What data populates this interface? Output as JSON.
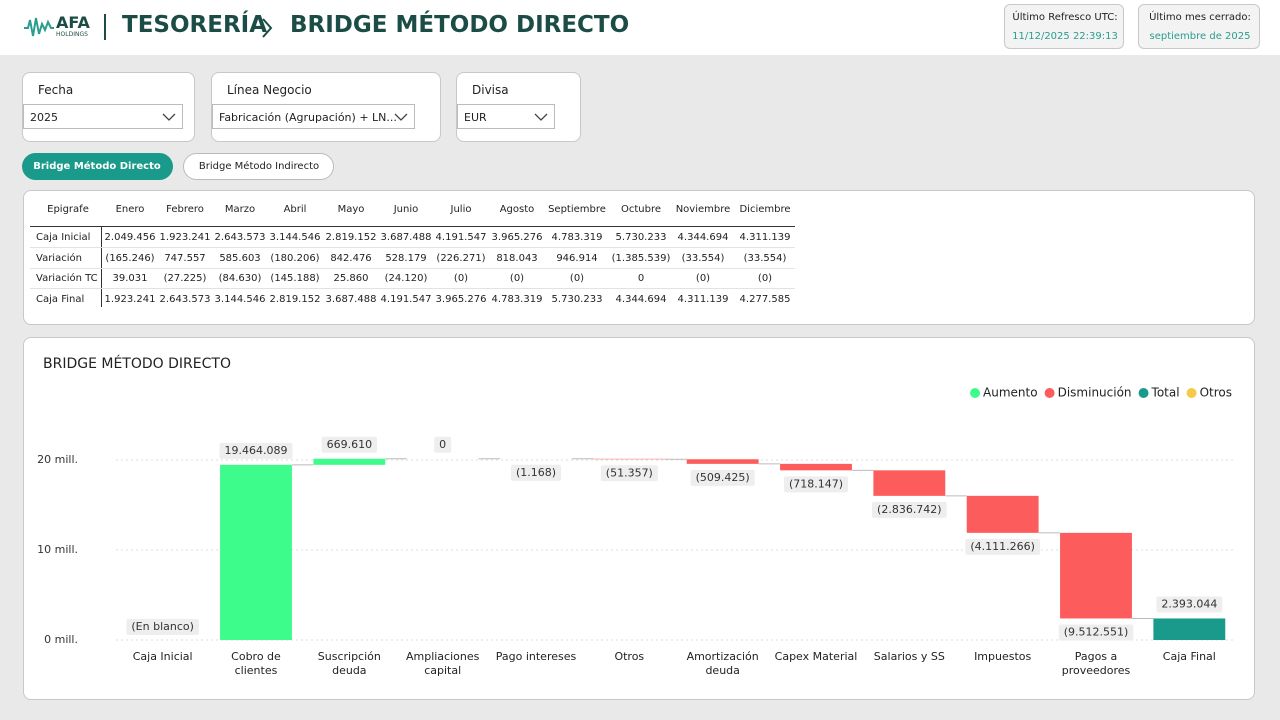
{
  "header": {
    "logo": "AFA",
    "logo_sub": "HOLDINGS",
    "section": "TESORERÍA",
    "page": "BRIDGE MÉTODO DIRECTO",
    "refresh_label": "Último Refresco UTC:",
    "refresh_value": "11/12/2025 22:39:13",
    "closed_label": "Último mes cerrado:",
    "closed_value": "septiembre de 2025"
  },
  "filters": [
    {
      "label": "Fecha",
      "value": "2025"
    },
    {
      "label": "Línea Negocio",
      "value": "Fabricación (Agrupación) + LN..."
    },
    {
      "label": "Divisa",
      "value": "EUR"
    }
  ],
  "tabs": [
    "Bridge Método Directo",
    "Bridge Método Indirecto"
  ],
  "table": {
    "header": [
      "Epigrafe",
      "Enero",
      "Febrero",
      "Marzo",
      "Abril",
      "Mayo",
      "Junio",
      "Julio",
      "Agosto",
      "Septiembre",
      "Octubre",
      "Noviembre",
      "Diciembre"
    ],
    "rows": [
      [
        "Caja Inicial",
        "2.049.456",
        "1.923.241",
        "2.643.573",
        "3.144.546",
        "2.819.152",
        "3.687.488",
        "4.191.547",
        "3.965.276",
        "4.783.319",
        "5.730.233",
        "4.344.694",
        "4.311.139"
      ],
      [
        "Variación",
        "(165.246)",
        "747.557",
        "585.603",
        "(180.206)",
        "842.476",
        "528.179",
        "(226.271)",
        "818.043",
        "946.914",
        "(1.385.539)",
        "(33.554)",
        "(33.554)"
      ],
      [
        "Variación TC",
        "39.031",
        "(27.225)",
        "(84.630)",
        "(145.188)",
        "25.860",
        "(24.120)",
        "(0)",
        "(0)",
        "(0)",
        "0",
        "(0)",
        "(0)"
      ],
      [
        "Caja Final",
        "1.923.241",
        "2.643.573",
        "3.144.546",
        "2.819.152",
        "3.687.488",
        "4.191.547",
        "3.965.276",
        "4.783.319",
        "5.730.233",
        "4.344.694",
        "4.311.139",
        "4.277.585"
      ]
    ]
  },
  "chart_data": {
    "type": "waterfall",
    "title": "BRIDGE MÉTODO DIRECTO",
    "legend": [
      {
        "name": "Aumento",
        "color": "#3dfc8c"
      },
      {
        "name": "Disminución",
        "color": "#fd5c5c"
      },
      {
        "name": "Total",
        "color": "#1a9a8a"
      },
      {
        "name": "Otros",
        "color": "#f7c948"
      }
    ],
    "categories": [
      "Caja Inicial",
      "Cobro de clientes",
      "Suscripción deuda",
      "Ampliaciones capital",
      "Pago intereses",
      "Otros",
      "Amortización deuda",
      "Capex Material",
      "Salarios y SS",
      "Impuestos",
      "Pagos a proveedores",
      "Caja Final"
    ],
    "values": [
      null,
      19464089,
      669610,
      0,
      -1168,
      -51357,
      -509425,
      -718147,
      -2836742,
      -4111266,
      -9512551,
      2393044
    ],
    "value_labels": [
      "(En blanco)",
      "19.464.089",
      "669.610",
      "0",
      "(1.168)",
      "(51.357)",
      "(509.425)",
      "(718.147)",
      "(2.836.742)",
      "(4.111.266)",
      "(9.512.551)",
      "2.393.044"
    ],
    "ylim": [
      0,
      23000000
    ],
    "yticks": [
      {
        "value": 0,
        "label": "0 mill."
      },
      {
        "value": 10000000,
        "label": "10 mill."
      },
      {
        "value": 20000000,
        "label": "20 mill."
      }
    ],
    "grid": true
  }
}
